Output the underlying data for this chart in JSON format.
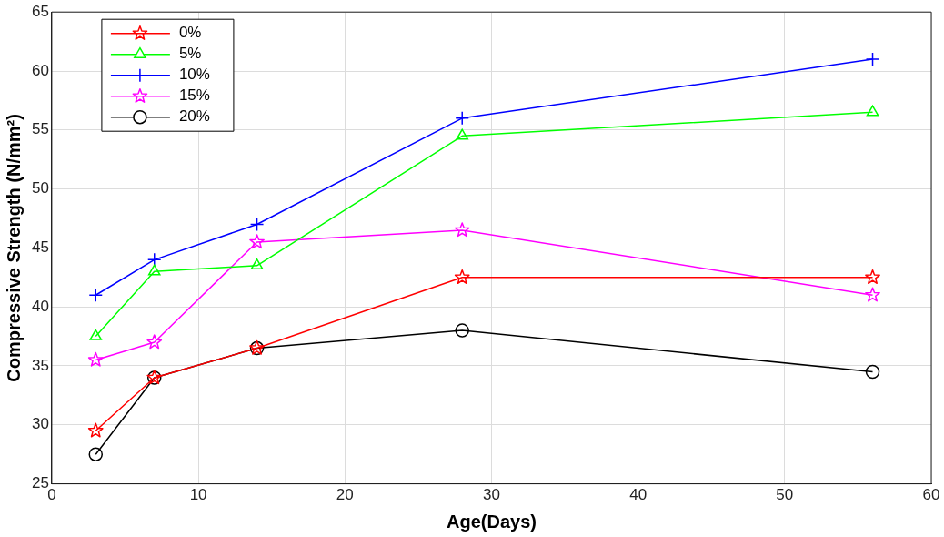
{
  "chart_data": {
    "type": "line",
    "xlabel": "Age(Days)",
    "ylabel": "Compressive Strength (N/mm²)",
    "x": [
      3,
      7,
      14,
      28,
      56
    ],
    "series": [
      {
        "name": "0%",
        "color": "#ff0000",
        "marker": "star",
        "values": [
          29.5,
          34,
          36.5,
          42.5,
          42.5
        ]
      },
      {
        "name": "5%",
        "color": "#00ff00",
        "marker": "triangle",
        "values": [
          37.5,
          43,
          43.5,
          54.5,
          56.5
        ]
      },
      {
        "name": "10%",
        "color": "#0000ff",
        "marker": "cross",
        "values": [
          41,
          44,
          47,
          56,
          61
        ]
      },
      {
        "name": "15%",
        "color": "#ff00ff",
        "marker": "star",
        "values": [
          35.5,
          37,
          45.5,
          46.5,
          41
        ]
      },
      {
        "name": "20%",
        "color": "#000000",
        "marker": "circle",
        "values": [
          27.5,
          34,
          36.5,
          38,
          34.5
        ]
      }
    ],
    "xlim": [
      0,
      60
    ],
    "xticks": [
      0,
      10,
      20,
      30,
      40,
      50,
      60
    ],
    "ylim": [
      25,
      65
    ],
    "yticks": [
      25,
      30,
      35,
      40,
      45,
      50,
      55,
      60,
      65
    ],
    "grid": true,
    "legend": "top left",
    "line_style": "solid"
  }
}
